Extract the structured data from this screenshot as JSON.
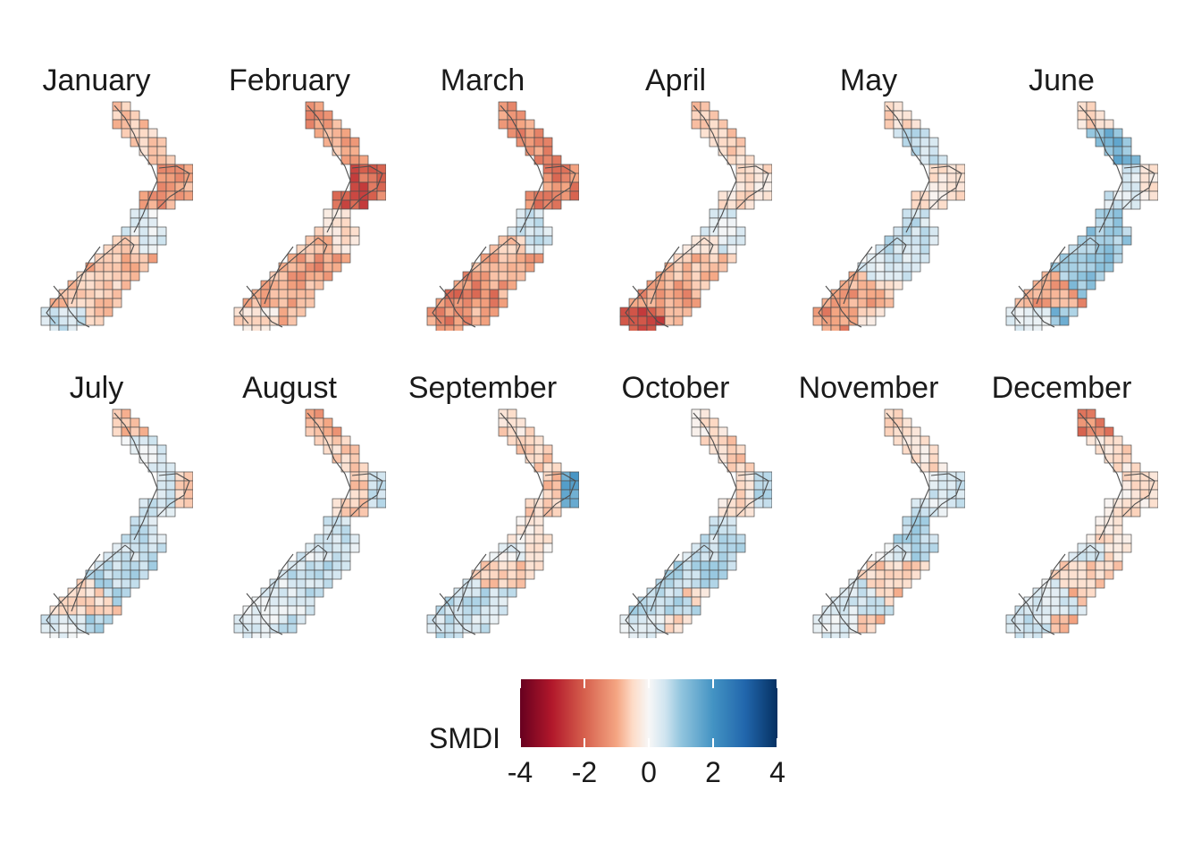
{
  "panels": [
    {
      "month": "January",
      "smdi": {
        "north_tip": -1.2,
        "northland": -1.0,
        "east_cape": -1.5,
        "central": -1.6,
        "wellington": 0.4,
        "nelson": -1.0,
        "west_coast": -1.1,
        "canterbury": -1.3,
        "southland": 0.8,
        "otago": -1.0
      }
    },
    {
      "month": "February",
      "smdi": {
        "north_tip": -1.6,
        "northland": -1.4,
        "east_cape": -2.2,
        "central": -2.4,
        "wellington": -0.6,
        "nelson": -1.3,
        "west_coast": -1.4,
        "canterbury": -1.6,
        "southland": -0.6,
        "otago": -1.4
      }
    },
    {
      "month": "March",
      "smdi": {
        "north_tip": -1.8,
        "northland": -1.7,
        "east_cape": -2.0,
        "central": -1.9,
        "wellington": 0.8,
        "nelson": -0.9,
        "west_coast": -2.0,
        "canterbury": -1.4,
        "southland": -1.8,
        "otago": -1.5
      }
    },
    {
      "month": "April",
      "smdi": {
        "north_tip": -1.0,
        "northland": -0.9,
        "east_cape": -0.6,
        "central": -0.6,
        "wellington": 0.5,
        "nelson": -0.6,
        "west_coast": -1.6,
        "canterbury": -1.2,
        "southland": -2.4,
        "otago": -1.3
      }
    },
    {
      "month": "May",
      "smdi": {
        "north_tip": -0.8,
        "northland": 0.9,
        "east_cape": -0.7,
        "central": -0.4,
        "wellington": 0.8,
        "nelson": 0.9,
        "west_coast": -1.5,
        "canterbury": 0.6,
        "southland": -1.8,
        "otago": -0.7
      }
    },
    {
      "month": "June",
      "smdi": {
        "north_tip": -0.8,
        "northland": 1.8,
        "east_cape": -0.5,
        "central": 0.6,
        "wellington": 1.4,
        "nelson": 1.2,
        "west_coast": -1.6,
        "canterbury": 1.4,
        "southland": 0.4,
        "otago": 1.6
      }
    },
    {
      "month": "July",
      "smdi": {
        "north_tip": -1.2,
        "northland": 0.5,
        "east_cape": -1.0,
        "central": 0.8,
        "wellington": 0.8,
        "nelson": 0.6,
        "west_coast": -0.8,
        "canterbury": 1.0,
        "southland": 0.5,
        "otago": 1.2
      }
    },
    {
      "month": "August",
      "smdi": {
        "north_tip": -1.4,
        "northland": -0.9,
        "east_cape": 0.8,
        "central": -0.9,
        "wellington": 0.7,
        "nelson": 0.5,
        "west_coast": 0.5,
        "canterbury": 0.9,
        "southland": 0.4,
        "otago": 0.8
      }
    },
    {
      "month": "September",
      "smdi": {
        "north_tip": -0.7,
        "northland": -0.9,
        "east_cape": 2.0,
        "central": -1.0,
        "wellington": -0.5,
        "nelson": 0.3,
        "west_coast": 0.9,
        "canterbury": -1.0,
        "southland": 0.8,
        "otago": 0.7
      }
    },
    {
      "month": "October",
      "smdi": {
        "north_tip": -0.5,
        "northland": -0.9,
        "east_cape": 1.1,
        "central": -0.6,
        "wellington": 0.9,
        "nelson": 0.8,
        "west_coast": 1.0,
        "canterbury": 1.1,
        "southland": 0.5,
        "otago": -0.8
      }
    },
    {
      "month": "November",
      "smdi": {
        "north_tip": -0.9,
        "northland": -0.6,
        "east_cape": 0.9,
        "central": 0.6,
        "wellington": 1.1,
        "nelson": 0.4,
        "west_coast": 0.7,
        "canterbury": -0.9,
        "southland": 0.4,
        "otago": -1.1
      }
    },
    {
      "month": "December",
      "smdi": {
        "north_tip": -2.0,
        "northland": -0.7,
        "east_cape": -0.6,
        "central": -0.5,
        "wellington": -0.6,
        "nelson": 0.6,
        "west_coast": 0.5,
        "canterbury": -0.9,
        "southland": 0.8,
        "otago": -1.2
      }
    }
  ],
  "legend": {
    "title": "SMDI",
    "min": -4,
    "max": 4,
    "ticks": [
      -4,
      -2,
      0,
      2,
      4
    ],
    "tick_labels": [
      "-4",
      "-2",
      "0",
      "2",
      "4"
    ],
    "palette": [
      "#67001f",
      "#b2182b",
      "#d6604d",
      "#f4a582",
      "#fddbc7",
      "#f7f7f7",
      "#d1e5f0",
      "#92c5de",
      "#4393c3",
      "#2166ac",
      "#053061"
    ]
  }
}
